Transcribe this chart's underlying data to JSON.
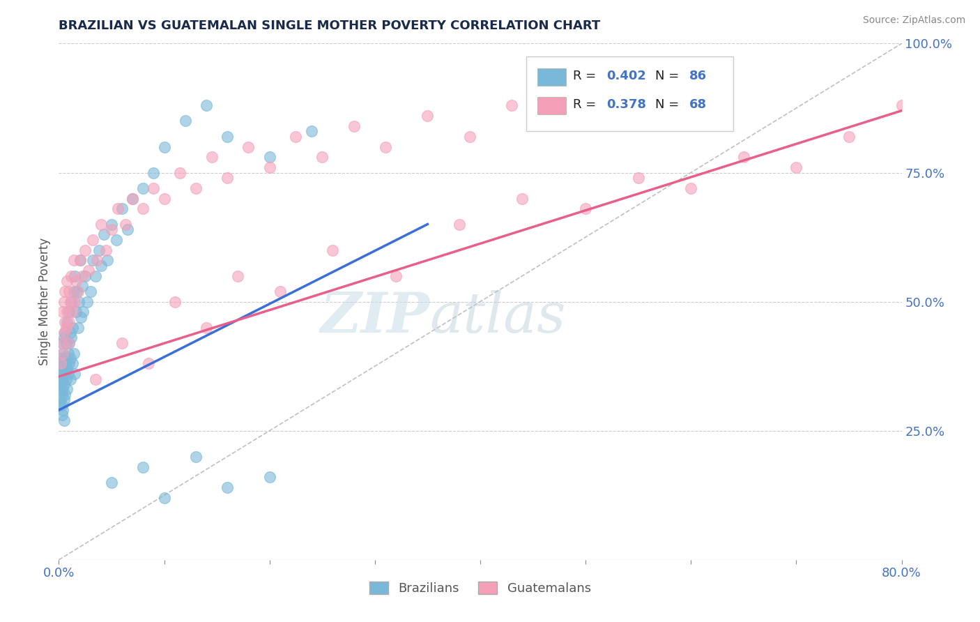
{
  "title": "BRAZILIAN VS GUATEMALAN SINGLE MOTHER POVERTY CORRELATION CHART",
  "source_text": "Source: ZipAtlas.com",
  "ylabel": "Single Mother Poverty",
  "xlim": [
    0.0,
    0.8
  ],
  "ylim": [
    0.0,
    1.0
  ],
  "xticks": [
    0.0,
    0.1,
    0.2,
    0.3,
    0.4,
    0.5,
    0.6,
    0.7,
    0.8
  ],
  "xticklabels": [
    "0.0%",
    "",
    "",
    "",
    "",
    "",
    "",
    "",
    "80.0%"
  ],
  "ytick_labels_right": [
    "100.0%",
    "75.0%",
    "50.0%",
    "25.0%"
  ],
  "ytick_positions_right": [
    1.0,
    0.75,
    0.5,
    0.25
  ],
  "blue_color": "#7ab8d9",
  "pink_color": "#f4a0b8",
  "blue_line_color": "#3a6fd8",
  "pink_line_color": "#e8608a",
  "watermark_color": "#d0e8f5",
  "background_color": "#ffffff",
  "brazil_line_x0": 0.0,
  "brazil_line_y0": 0.29,
  "brazil_line_x1": 0.35,
  "brazil_line_y1": 0.65,
  "guate_line_x0": 0.0,
  "guate_line_y0": 0.355,
  "guate_line_x1": 0.8,
  "guate_line_y1": 0.87,
  "brazil_x": [
    0.001,
    0.001,
    0.001,
    0.001,
    0.002,
    0.002,
    0.002,
    0.002,
    0.002,
    0.003,
    0.003,
    0.003,
    0.003,
    0.003,
    0.003,
    0.004,
    0.004,
    0.004,
    0.004,
    0.005,
    0.005,
    0.005,
    0.005,
    0.005,
    0.006,
    0.006,
    0.006,
    0.006,
    0.007,
    0.007,
    0.007,
    0.008,
    0.008,
    0.008,
    0.009,
    0.009,
    0.01,
    0.01,
    0.01,
    0.011,
    0.011,
    0.011,
    0.012,
    0.012,
    0.013,
    0.013,
    0.014,
    0.014,
    0.015,
    0.015,
    0.016,
    0.017,
    0.018,
    0.019,
    0.02,
    0.021,
    0.022,
    0.023,
    0.025,
    0.027,
    0.03,
    0.032,
    0.035,
    0.038,
    0.04,
    0.043,
    0.046,
    0.05,
    0.055,
    0.06,
    0.065,
    0.07,
    0.08,
    0.09,
    0.1,
    0.12,
    0.14,
    0.16,
    0.2,
    0.24,
    0.05,
    0.08,
    0.1,
    0.13,
    0.16,
    0.2
  ],
  "brazil_y": [
    0.33,
    0.36,
    0.3,
    0.38,
    0.34,
    0.37,
    0.31,
    0.35,
    0.39,
    0.32,
    0.35,
    0.38,
    0.3,
    0.42,
    0.28,
    0.33,
    0.37,
    0.29,
    0.4,
    0.34,
    0.37,
    0.31,
    0.43,
    0.27,
    0.36,
    0.32,
    0.39,
    0.44,
    0.35,
    0.38,
    0.42,
    0.37,
    0.33,
    0.46,
    0.4,
    0.36,
    0.42,
    0.38,
    0.48,
    0.35,
    0.44,
    0.39,
    0.43,
    0.5,
    0.38,
    0.45,
    0.52,
    0.4,
    0.55,
    0.36,
    0.48,
    0.52,
    0.45,
    0.5,
    0.58,
    0.47,
    0.53,
    0.48,
    0.55,
    0.5,
    0.52,
    0.58,
    0.55,
    0.6,
    0.57,
    0.63,
    0.58,
    0.65,
    0.62,
    0.68,
    0.64,
    0.7,
    0.72,
    0.75,
    0.8,
    0.85,
    0.88,
    0.82,
    0.78,
    0.83,
    0.15,
    0.18,
    0.12,
    0.2,
    0.14,
    0.16
  ],
  "guate_x": [
    0.002,
    0.003,
    0.004,
    0.004,
    0.005,
    0.005,
    0.006,
    0.006,
    0.007,
    0.008,
    0.008,
    0.009,
    0.01,
    0.01,
    0.011,
    0.012,
    0.013,
    0.014,
    0.015,
    0.016,
    0.018,
    0.02,
    0.022,
    0.025,
    0.028,
    0.032,
    0.036,
    0.04,
    0.045,
    0.05,
    0.056,
    0.063,
    0.07,
    0.08,
    0.09,
    0.1,
    0.115,
    0.13,
    0.145,
    0.16,
    0.18,
    0.2,
    0.225,
    0.25,
    0.28,
    0.31,
    0.35,
    0.39,
    0.43,
    0.47,
    0.035,
    0.06,
    0.085,
    0.11,
    0.14,
    0.17,
    0.21,
    0.26,
    0.32,
    0.38,
    0.44,
    0.5,
    0.55,
    0.6,
    0.65,
    0.7,
    0.75,
    0.8
  ],
  "guate_y": [
    0.38,
    0.42,
    0.4,
    0.48,
    0.44,
    0.5,
    0.46,
    0.52,
    0.45,
    0.48,
    0.54,
    0.42,
    0.46,
    0.52,
    0.5,
    0.55,
    0.48,
    0.58,
    0.5,
    0.54,
    0.52,
    0.58,
    0.55,
    0.6,
    0.56,
    0.62,
    0.58,
    0.65,
    0.6,
    0.64,
    0.68,
    0.65,
    0.7,
    0.68,
    0.72,
    0.7,
    0.75,
    0.72,
    0.78,
    0.74,
    0.8,
    0.76,
    0.82,
    0.78,
    0.84,
    0.8,
    0.86,
    0.82,
    0.88,
    0.85,
    0.35,
    0.42,
    0.38,
    0.5,
    0.45,
    0.55,
    0.52,
    0.6,
    0.55,
    0.65,
    0.7,
    0.68,
    0.74,
    0.72,
    0.78,
    0.76,
    0.82,
    0.88
  ]
}
